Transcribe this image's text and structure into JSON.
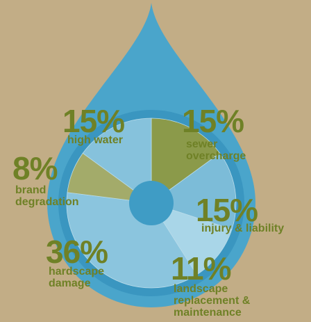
{
  "chart_data": {
    "type": "pie",
    "categories": [
      "sewer overcharge",
      "injury & liability",
      "landscape replacement & maintenance",
      "hardscape damage",
      "brand degradation",
      "high water"
    ],
    "values": [
      15,
      15,
      11,
      36,
      8,
      15
    ],
    "value_labels": [
      "15%",
      "15%",
      "11%",
      "36%",
      "8%",
      "15%"
    ],
    "colors": [
      "#8b9a4a",
      "#7cbcd8",
      "#a9d6e8",
      "#8bc5de",
      "#a3ab6a",
      "#86c2dc"
    ]
  }
}
